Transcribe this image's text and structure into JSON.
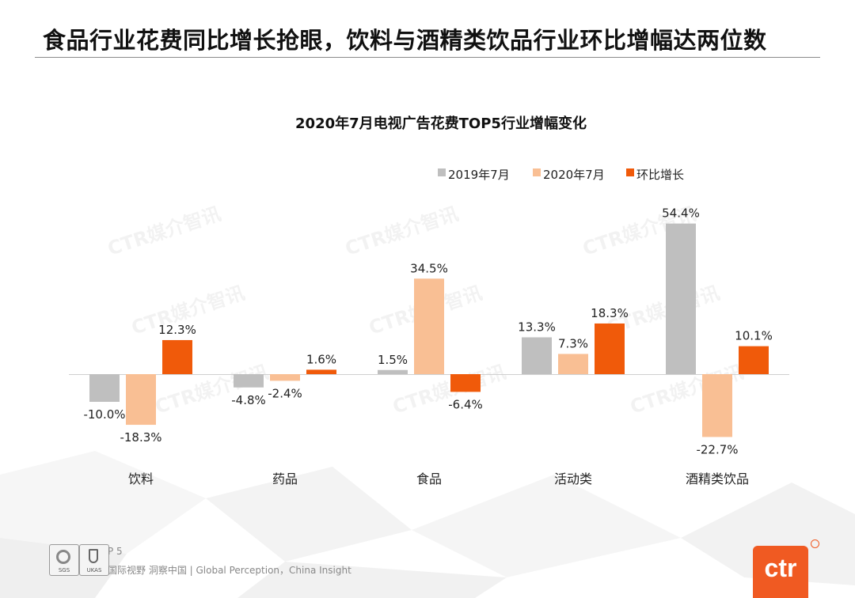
{
  "headline": "食品行业花费同比增长抢眼，饮料与酒精类饮品行业环比增幅达两位数",
  "footer": {
    "page": "P 5",
    "tagline": "国际视野  洞察中国 |  Global Perception，China Insight",
    "cert_sgs": "SGS",
    "cert_ukas": "UKAS"
  },
  "logo": {
    "text": "ctr"
  },
  "watermark": "CTR媒介智讯",
  "colors": {
    "y2019": "#bfbfbf",
    "y2020": "#f9bf94",
    "mom": "#f05a0a",
    "logo": "#f05a22"
  },
  "chart_data": {
    "type": "bar",
    "title": "2020年7月电视广告花费TOP5行业增幅变化",
    "categories": [
      "饮料",
      "药品",
      "食品",
      "活动类",
      "酒精类饮品"
    ],
    "series": [
      {
        "name": "2019年7月",
        "values": [
          -10.0,
          -4.8,
          1.5,
          13.3,
          54.4
        ],
        "labels": [
          "-10.0%",
          "-4.8%",
          "1.5%",
          "13.3%",
          "54.4%"
        ]
      },
      {
        "name": "2020年7月",
        "values": [
          -18.3,
          -2.4,
          34.5,
          7.3,
          -22.7
        ],
        "labels": [
          "-18.3%",
          "-2.4%",
          "34.5%",
          "7.3%",
          "-22.7%"
        ]
      },
      {
        "name": "环比增长",
        "values": [
          12.3,
          1.6,
          -6.4,
          18.3,
          10.1
        ],
        "labels": [
          "12.3%",
          "1.6%",
          "-6.4%",
          "18.3%",
          "10.1%"
        ]
      }
    ],
    "legend": "top-right",
    "grid": false
  }
}
